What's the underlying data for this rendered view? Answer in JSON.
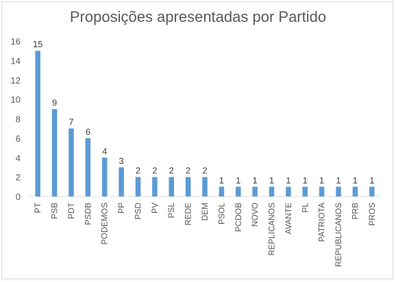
{
  "chart_data": {
    "type": "bar",
    "title": "Proposições apresentadas por Partido",
    "xlabel": "",
    "ylabel": "",
    "categories": [
      "PT",
      "PSB",
      "PDT",
      "PSDB",
      "PODEMOS",
      "PP",
      "PSD",
      "PV",
      "PSL",
      "REDE",
      "DEM",
      "PSOL",
      "PCDOB",
      "NOVO",
      "REPLICANOS",
      "AVANTE",
      "PL",
      "PATRIOTA",
      "REPUBLICANOS",
      "PRB",
      "PROS"
    ],
    "values": [
      15,
      9,
      7,
      6,
      4,
      3,
      2,
      2,
      2,
      2,
      2,
      1,
      1,
      1,
      1,
      1,
      1,
      1,
      1,
      1,
      1
    ],
    "ylim": [
      0,
      16
    ],
    "yticks": [
      0,
      2,
      4,
      6,
      8,
      10,
      12,
      14,
      16
    ],
    "grid": false,
    "legend": "none",
    "data_labels": true,
    "bar_color": "#5b9bd5",
    "text_color": "#595959"
  }
}
